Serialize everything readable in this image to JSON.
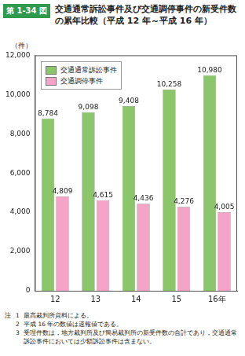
{
  "chart_data": {
    "type": "bar",
    "figure_number": "第 1-34 図",
    "title": "交通通常訴訟事件及び交通調停事件の新受件数の累年比較（平成 12 年～平成 16 年）",
    "y_label": "（件）",
    "categories": [
      "12",
      "13",
      "14",
      "15",
      "16年"
    ],
    "series": [
      {
        "name": "交通通常訴訟事件",
        "color": "#8cc66a",
        "values": [
          8784,
          9098,
          9408,
          10258,
          10980
        ],
        "value_labels": [
          "8,784",
          "9,098",
          "9,408",
          "10,258",
          "10,980"
        ]
      },
      {
        "name": "交通調停事件",
        "color": "#f5a3c7",
        "values": [
          4809,
          4615,
          4436,
          4276,
          4005
        ],
        "value_labels": [
          "4,809",
          "4,615",
          "4,436",
          "4,276",
          "4,005"
        ]
      }
    ],
    "ylim": [
      0,
      12000
    ],
    "yticks": [
      0,
      {
        "value": 2000,
        "label": "2,000"
      },
      {
        "value": 4000,
        "label": "4,000"
      },
      {
        "value": 6000,
        "label": "6,000"
      },
      {
        "value": 8000,
        "label": "8,000"
      },
      {
        "value": 10000,
        "label": "10,000"
      },
      {
        "value": 12000,
        "label": "12,000"
      }
    ],
    "grid": false,
    "legend": "upper left",
    "data_labels": true,
    "notes_heading": "注",
    "notes": [
      {
        "number": "1",
        "text": "最高裁判所資料による。"
      },
      {
        "number": "2",
        "text": "平成 16 年の数値は速報値である。"
      },
      {
        "number": "3",
        "text": "受理件数は，地方裁判所及び簡易裁判所の新受件数の合計であり，交通通常訴訟事件においては少額訴訟事件は含まない。"
      }
    ]
  }
}
